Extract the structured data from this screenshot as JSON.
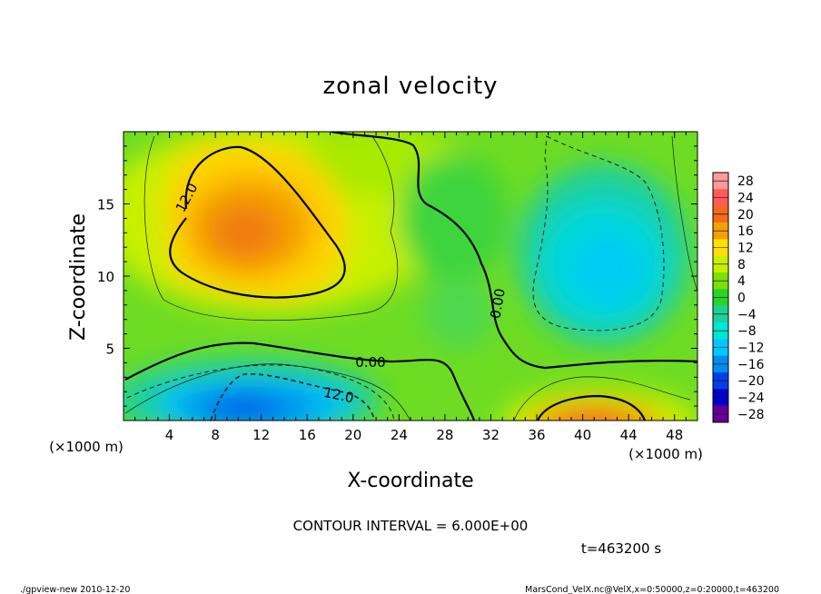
{
  "chart_data": {
    "type": "heatmap",
    "title": "zonal velocity",
    "xlabel": "X-coordinate",
    "ylabel": "Z-coordinate",
    "x_unit_label": "(×1000 m)",
    "y_unit_label": "(×1000 m)",
    "xlim": [
      0,
      50
    ],
    "ylim": [
      0,
      20
    ],
    "x_ticks": [
      4,
      8,
      12,
      16,
      20,
      24,
      28,
      32,
      36,
      40,
      44,
      48
    ],
    "y_ticks": [
      5,
      10,
      15
    ],
    "colorbar": {
      "levels": [
        28,
        24,
        20,
        16,
        12,
        8,
        4,
        0,
        -4,
        -8,
        -12,
        -16,
        -20,
        -24,
        -28
      ],
      "colors": [
        "#ff9a9a",
        "#ff5a5a",
        "#f26a1c",
        "#f5a000",
        "#ffe000",
        "#c8f000",
        "#7ce000",
        "#28d428",
        "#1cd09a",
        "#00e6d2",
        "#00c8ff",
        "#008cf0",
        "#0040e6",
        "#0000c8",
        "#640096"
      ]
    },
    "contour_interval_text": "CONTOUR INTERVAL = 6.000E+00",
    "contour_labels": [
      "12.0",
      "0.00",
      "0.00",
      "12.0"
    ],
    "features": [
      {
        "name": "upper-left jet core",
        "x": 13,
        "z": 13,
        "value": 17
      },
      {
        "name": "lower-left negative core",
        "x": 11,
        "z": 1.5,
        "value": -15
      },
      {
        "name": "right negative region",
        "x": 42,
        "z": 10.5,
        "value": -10
      },
      {
        "name": "bottom-right positive core",
        "x": 41,
        "z": 0.3,
        "value": 16
      }
    ],
    "time_text": "t=463200 s"
  },
  "footer": {
    "left": "./gpview-new   2010-12-20",
    "right": "MarsCond_VelX.nc@VelX,x=0:50000,z=0:20000,t=463200"
  }
}
